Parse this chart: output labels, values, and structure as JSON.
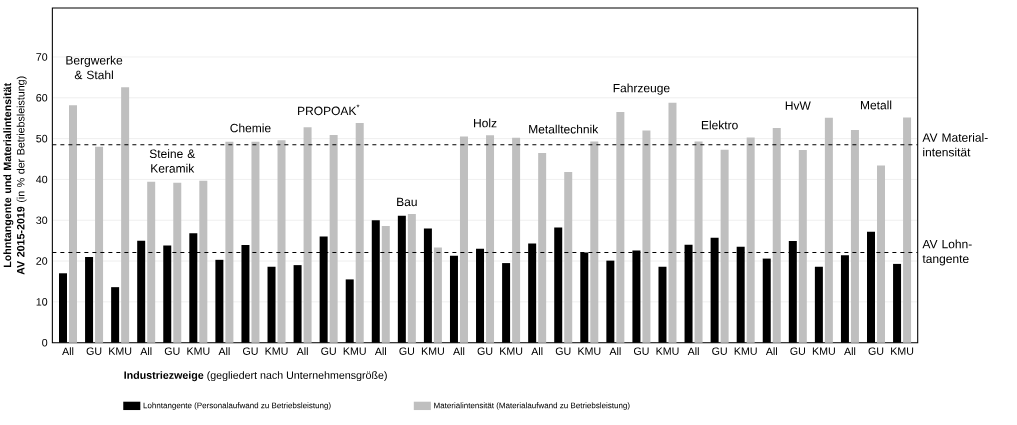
{
  "chart_data": {
    "type": "bar",
    "ylabel": "**Lohntangente und Materialintensität AV 2015-2019** (in % der Betriebsleistung)",
    "xlabel": "**Industriezweige** (gegliedert nach Unternehmensgröße)",
    "categories": [
      "All",
      "GU",
      "KMU",
      "All",
      "GU",
      "KMU",
      "All",
      "GU",
      "KMU",
      "All",
      "GU",
      "KMU",
      "All",
      "GU",
      "KMU",
      "All",
      "GU",
      "KMU",
      "All",
      "GU",
      "KMU",
      "All",
      "GU",
      "KMU",
      "All",
      "GU",
      "KMU",
      "All",
      "GU",
      "KMU",
      "All",
      "GU",
      "KMU"
    ],
    "series": [
      {
        "name": "Lohntangente (Personalaufwand zu Betriebsleistung)",
        "color": "#000000",
        "values": [
          17,
          21,
          13.6,
          25,
          23.8,
          26.8,
          20.3,
          23.9,
          18.6,
          19,
          26,
          15.5,
          30,
          31.1,
          28,
          21.3,
          23,
          19.5,
          24.3,
          28.2,
          22.1,
          20.1,
          22.6,
          18.6,
          24,
          25.7,
          23.5,
          20.6,
          24.9,
          18.6,
          21.4,
          27.2,
          19.3
        ]
      },
      {
        "name": "Materialintensität (Materialaufwand zu Betriebsleistung)",
        "color": "#bfbfbf",
        "values": [
          58.2,
          48,
          62.6,
          39.4,
          39.2,
          39.7,
          49.2,
          49.2,
          49.6,
          52.8,
          50.9,
          53.8,
          28.6,
          31.5,
          23.3,
          50.5,
          50.8,
          50.2,
          46.5,
          41.8,
          49.3,
          56.5,
          52,
          58.8,
          49.3,
          47.3,
          50.3,
          52.6,
          47.2,
          55.1,
          52.1,
          43.4,
          55.2
        ]
      }
    ],
    "ylim": [
      0,
      82
    ],
    "yticks": [
      0,
      10,
      20,
      30,
      40,
      50,
      60,
      70
    ],
    "grid": "y",
    "legend": "bottom",
    "ref_lines": [
      {
        "axis": "y",
        "value": 48.5,
        "label": "AV Material-intensität",
        "line_style": "dashed"
      },
      {
        "axis": "y",
        "value": 22.1,
        "label": "AV Lohn-tangente",
        "line_style": "dashed"
      }
    ],
    "annotations": [
      "Bergwerke & Stahl",
      "Steine & Keramik",
      "Chemie",
      "PROPOAK$^{*}$",
      "Bau",
      "Holz",
      "Metalltechnik",
      "Fahrzeuge",
      "Elektro",
      "HvW",
      "Metall"
    ]
  }
}
